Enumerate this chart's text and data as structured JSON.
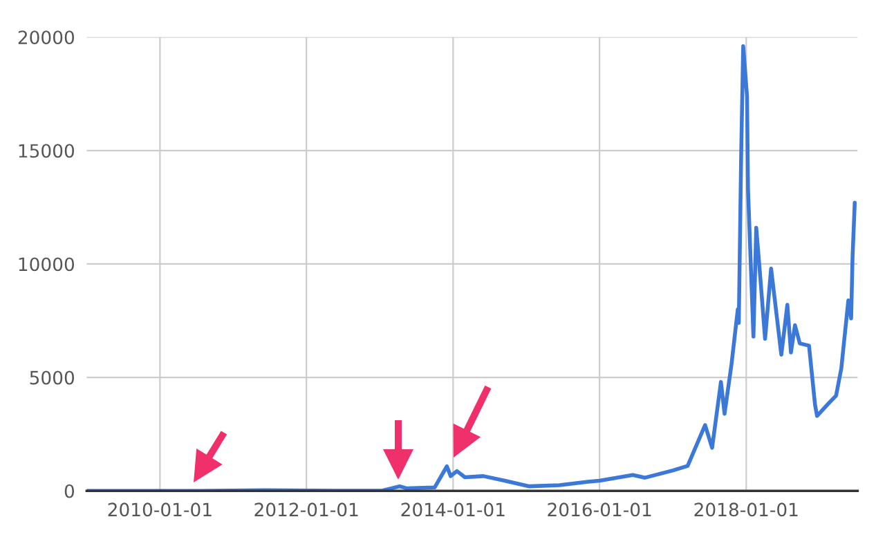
{
  "chart_data": {
    "type": "line",
    "x": [
      "2009-01-03",
      "2010-07-15",
      "2011-06-10",
      "2012-06-01",
      "2013-01-15",
      "2013-04-10",
      "2013-05-15",
      "2013-10-01",
      "2013-12-01",
      "2013-12-20",
      "2014-01-20",
      "2014-03-01",
      "2014-06-01",
      "2014-09-15",
      "2015-01-15",
      "2015-06-15",
      "2015-11-05",
      "2016-01-01",
      "2016-06-15",
      "2016-08-15",
      "2017-01-01",
      "2017-03-15",
      "2017-06-10",
      "2017-07-15",
      "2017-08-28",
      "2017-09-15",
      "2017-10-20",
      "2017-11-20",
      "2017-11-25",
      "2017-12-07",
      "2017-12-17",
      "2018-01-05",
      "2018-01-10",
      "2018-02-06",
      "2018-02-20",
      "2018-03-15",
      "2018-04-05",
      "2018-05-05",
      "2018-06-25",
      "2018-07-25",
      "2018-08-12",
      "2018-09-01",
      "2018-09-25",
      "2018-11-10",
      "2018-12-10",
      "2018-12-20",
      "2019-02-10",
      "2019-03-25",
      "2019-04-20",
      "2019-05-25",
      "2019-06-08",
      "2019-06-15",
      "2019-06-26"
    ],
    "series": [
      {
        "color": "#3b78d8",
        "values": [
          0,
          0,
          30,
          6,
          15,
          200,
          110,
          150,
          1080,
          650,
          870,
          600,
          650,
          450,
          200,
          250,
          400,
          450,
          700,
          580,
          900,
          1100,
          2900,
          1900,
          4800,
          3400,
          5600,
          8000,
          7400,
          14900,
          19600,
          17400,
          13300,
          6800,
          11600,
          9100,
          6700,
          9800,
          6000,
          8200,
          6100,
          7300,
          6500,
          6400,
          3800,
          3300,
          3800,
          4200,
          5400,
          8400,
          7600,
          10300,
          12700
        ]
      }
    ],
    "xlim": [
      "2009-01-01",
      "2019-07-10"
    ],
    "xticks": [
      "2010-01-01",
      "2012-01-01",
      "2014-01-01",
      "2016-01-01",
      "2018-01-01"
    ],
    "ylim": [
      0,
      20000
    ],
    "yticks": [
      0,
      5000,
      10000,
      15000,
      20000
    ],
    "grid": true,
    "legend": false,
    "marker": "none",
    "line_style": "solid"
  }
}
